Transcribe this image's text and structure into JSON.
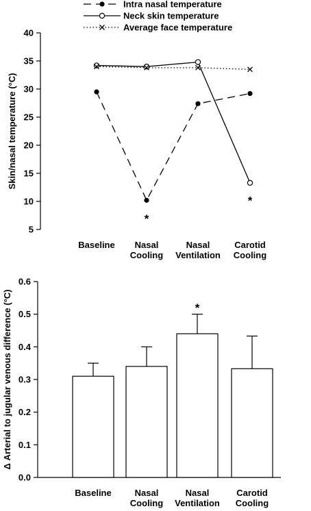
{
  "chart_data": [
    {
      "type": "line",
      "ylabel": "Skin/nasal temperature (°C)",
      "ylim": [
        5,
        40
      ],
      "yticks": [
        5,
        10,
        15,
        20,
        25,
        30,
        35,
        40
      ],
      "categories": [
        "Baseline",
        "Nasal Cooling",
        "Nasal Ventilation",
        "Carotid Cooling"
      ],
      "category_lines": [
        [
          "Baseline"
        ],
        [
          "Nasal",
          "Cooling"
        ],
        [
          "Nasal",
          "Ventilation"
        ],
        [
          "Carotid",
          "Cooling"
        ]
      ],
      "legend_position": "top",
      "grid": false,
      "series": [
        {
          "name": "Intra nasal temperature",
          "values": [
            29.5,
            10.2,
            27.4,
            29.2
          ],
          "line": "dashed",
          "marker": "filled-circle",
          "color": "#000000"
        },
        {
          "name": "Neck skin temperature",
          "values": [
            34.2,
            34.0,
            34.8,
            13.3
          ],
          "line": "solid",
          "marker": "open-circle",
          "color": "#000000"
        },
        {
          "name": "Average face temperature",
          "values": [
            34.0,
            33.8,
            33.8,
            33.5
          ],
          "line": "dotted",
          "marker": "cross",
          "color": "#000000"
        }
      ],
      "annotations": [
        {
          "text": "*",
          "category": "Nasal Cooling",
          "y": 7.2
        },
        {
          "text": "*",
          "category": "Carotid Cooling",
          "y": 10.4
        }
      ]
    },
    {
      "type": "bar",
      "ylabel": "Δ Arterial to jugular venous difference (°C)",
      "ylim": [
        0,
        0.6
      ],
      "yticks": [
        "0.0",
        "0.1",
        "0.2",
        "0.3",
        "0.4",
        "0.5",
        "0.6"
      ],
      "categories": [
        "Baseline",
        "Nasal Cooling",
        "Nasal Ventilation",
        "Carotid Cooling"
      ],
      "category_lines": [
        [
          "Baseline"
        ],
        [
          "Nasal",
          "Cooling"
        ],
        [
          "Nasal",
          "Ventilation"
        ],
        [
          "Carotid",
          "Cooling"
        ]
      ],
      "grid": false,
      "values": [
        0.31,
        0.34,
        0.44,
        0.333
      ],
      "error_upper": [
        0.04,
        0.06,
        0.06,
        0.1
      ],
      "bar_fill": "#ffffff",
      "bar_stroke": "#000000",
      "annotations": [
        {
          "text": "*",
          "category": "Nasal Ventilation",
          "y": 0.525
        }
      ]
    }
  ]
}
